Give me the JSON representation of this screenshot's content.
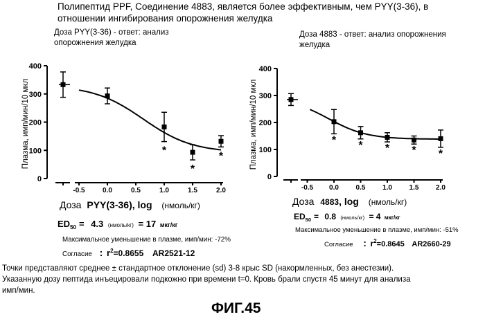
{
  "header": {
    "line1": "Полипептид PPF, Соединение 4883, является более эффективным, чем PYY(3-36), в",
    "line2": "отношении ингибирования опорожнения желудка"
  },
  "left": {
    "title_line1": "Доза PYY(3-36) - ответ: анализ",
    "title_line2": "опорожнения желудка",
    "xlabel_a": "Доза",
    "xlabel_b": "PYY(3-36)",
    "xlabel_c": ", log",
    "xlabel_d": "(нмоль/кг)",
    "ed50_label": "ED",
    "ed50_sub": "50",
    "ed50_eq": "=",
    "ed50_value": "4.3",
    "ed50_unit1": "(нмоль/кг)",
    "ed50_mid": "= 17",
    "ed50_unit2": "мкг/кг",
    "max_reduction": "Максимальное уменьшение в плазме, имп/мин: -72%",
    "fit_label": "Согласие",
    "fit_colon": ":",
    "fit_r2": "r",
    "fit_sup": "2",
    "fit_value": "=0.8655",
    "fit_code": "AR2521-12"
  },
  "right": {
    "title_line1": "Доза 4883 - ответ: анализ опорожнения",
    "title_line2": "желудка",
    "xlabel_a": "Доза",
    "xlabel_b": "4883",
    "xlabel_c": ", log",
    "xlabel_d": "(нмоль/кг)",
    "ed50_label": "ED",
    "ed50_sub": "50",
    "ed50_eq": "=",
    "ed50_value": "0.8",
    "ed50_unit1": "(нмоль/кг)",
    "ed50_mid": "= 4",
    "ed50_unit2": "мкг/кг",
    "max_reduction": "Максимальное уменьшение в плазме, имп/мин: -51%",
    "fit_label": "Согласие",
    "fit_colon": ":",
    "fit_r2": "r",
    "fit_sup": "2",
    "fit_value": "=0.8645",
    "fit_code": "AR2660-29"
  },
  "footnote": {
    "line1": "Точки представляют среднее ± стандартное отклонение (sd) 3-8 крыс SD (накормленных, без анестезии).",
    "line2": "Указанную дозу пептида инъецировали подкожно при времени t=0. Кровь брали спустя 45 минут для анализа",
    "line3": "имп/мин."
  },
  "figure_label": "ФИГ.45",
  "chart_data": [
    {
      "type": "scatter",
      "title": "Доза PYY(3-36) - ответ: анализ опорожнения желудка",
      "xlabel": "Доза PYY(3-36), log (нмоль/кг)",
      "ylabel": "Плазма, имп/мин/10 мкл",
      "xlim": [
        -1.0,
        2.0
      ],
      "ylim": [
        0,
        400
      ],
      "x_ticks": [
        -0.5,
        0.0,
        0.5,
        1.0,
        1.5,
        2.0
      ],
      "x_tick_labels": [
        "-0.5",
        "0.0",
        "0.5",
        "1.0",
        "1.5",
        "2.0"
      ],
      "y_ticks": [
        0,
        100,
        200,
        300,
        400
      ],
      "y_tick_labels": [
        "0",
        "100",
        "200",
        "300",
        "400"
      ],
      "grid": false,
      "points": [
        {
          "x": -0.8,
          "y": 333,
          "err": 45,
          "star": false,
          "baseline": true
        },
        {
          "x": 0.0,
          "y": 293,
          "err": 28,
          "star": false
        },
        {
          "x": 1.0,
          "y": 183,
          "err": 52,
          "star": true
        },
        {
          "x": 1.5,
          "y": 93,
          "err": 27,
          "star": true
        },
        {
          "x": 2.0,
          "y": 132,
          "err": 20,
          "star": true
        }
      ],
      "fit_curve": {
        "top": 330,
        "bottom": 92,
        "ed50_log": 0.63,
        "hill": 1.0
      }
    },
    {
      "type": "scatter",
      "title": "Доза 4883 - ответ: анализ опорожнения желудка",
      "xlabel": "Доза 4883, log (нмоль/кг)",
      "ylabel": "Плазма, имп/мин/10 мкл",
      "xlim": [
        -1.0,
        2.0
      ],
      "ylim": [
        0,
        400
      ],
      "x_ticks": [
        -0.5,
        0.0,
        0.5,
        1.0,
        1.5,
        2.0
      ],
      "x_tick_labels": [
        "-0.5",
        "0.0",
        "0.5",
        "1.0",
        "1.5",
        "2.0"
      ],
      "y_ticks": [
        0,
        100,
        200,
        300,
        400
      ],
      "y_tick_labels": [
        "0",
        "100",
        "200",
        "300",
        "400"
      ],
      "grid": false,
      "points": [
        {
          "x": -0.8,
          "y": 285,
          "err": 22,
          "star": false,
          "baseline": true
        },
        {
          "x": 0.0,
          "y": 203,
          "err": 45,
          "star": true
        },
        {
          "x": 0.5,
          "y": 162,
          "err": 23,
          "star": true
        },
        {
          "x": 1.0,
          "y": 145,
          "err": 17,
          "star": true
        },
        {
          "x": 1.5,
          "y": 135,
          "err": 15,
          "star": true
        },
        {
          "x": 2.0,
          "y": 140,
          "err": 32,
          "star": true
        }
      ],
      "fit_curve": {
        "top": 290,
        "bottom": 138,
        "ed50_log": -0.1,
        "hill": 1.2
      }
    }
  ]
}
